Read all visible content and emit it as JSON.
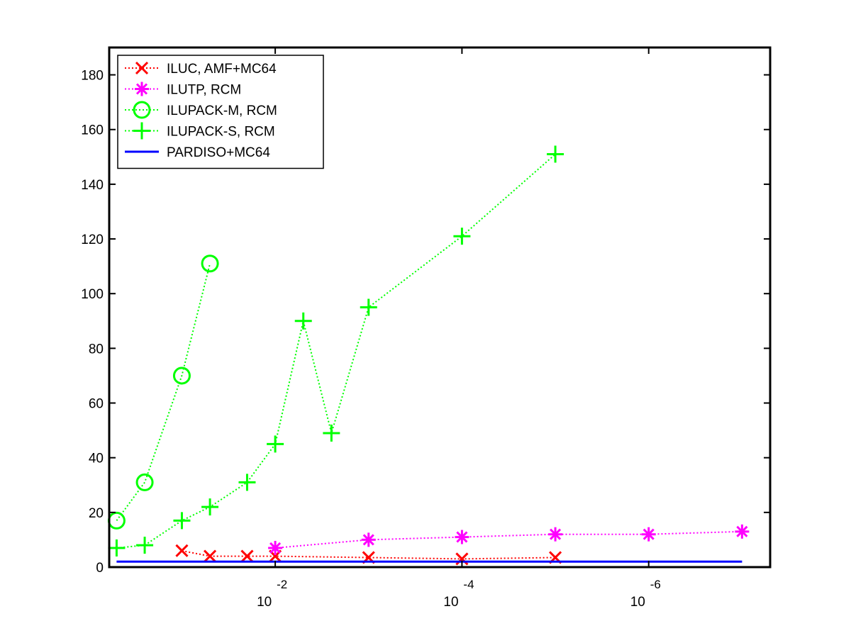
{
  "chart_data": {
    "type": "line",
    "title": "",
    "xlabel": "",
    "ylabel": "",
    "x_scale": "log",
    "x_direction": "decreasing",
    "xlim": [
      0.6,
      5e-08
    ],
    "ylim": [
      0,
      190
    ],
    "y_ticks": [
      0,
      20,
      40,
      60,
      80,
      100,
      120,
      140,
      160,
      180
    ],
    "x_ticks": [
      {
        "base": "10",
        "exponent": "-2"
      },
      {
        "base": "10",
        "exponent": "-4"
      },
      {
        "base": "10",
        "exponent": "-6"
      }
    ],
    "grid": false,
    "legend_position": "top-left",
    "series": [
      {
        "name": "ILUC, AMF+MC64",
        "color": "#ff0000",
        "marker": "x",
        "line": "dotted",
        "points": [
          [
            0.1,
            6
          ],
          [
            0.05,
            4
          ],
          [
            0.02,
            4
          ],
          [
            0.01,
            4
          ],
          [
            0.001,
            3.5
          ],
          [
            0.0001,
            3
          ],
          [
            1e-05,
            3.5
          ]
        ]
      },
      {
        "name": "ILUTP, RCM",
        "color": "#ff00ff",
        "marker": "asterisk",
        "line": "dotted",
        "points": [
          [
            0.01,
            7
          ],
          [
            0.001,
            10
          ],
          [
            0.0001,
            11
          ],
          [
            1e-05,
            12
          ],
          [
            1e-06,
            12
          ],
          [
            1e-07,
            13
          ]
        ]
      },
      {
        "name": "ILUPACK-M, RCM",
        "color": "#00ff00",
        "marker": "circle",
        "line": "dotted",
        "points": [
          [
            0.5,
            17
          ],
          [
            0.25,
            31
          ],
          [
            0.1,
            70
          ],
          [
            0.05,
            111
          ]
        ]
      },
      {
        "name": "ILUPACK-S, RCM",
        "color": "#00ff00",
        "marker": "plus",
        "line": "dotted",
        "points": [
          [
            0.5,
            7
          ],
          [
            0.25,
            8
          ],
          [
            0.1,
            17
          ],
          [
            0.05,
            22
          ],
          [
            0.02,
            31
          ],
          [
            0.01,
            45
          ],
          [
            0.005,
            90
          ],
          [
            0.0025,
            49
          ],
          [
            0.001,
            95
          ],
          [
            0.0001,
            121
          ],
          [
            1e-05,
            151
          ]
        ]
      },
      {
        "name": "PARDISO+MC64",
        "color": "#0000ff",
        "marker": "none",
        "line": "solid",
        "points": [
          [
            0.5,
            2
          ],
          [
            1e-07,
            2
          ]
        ]
      }
    ]
  }
}
